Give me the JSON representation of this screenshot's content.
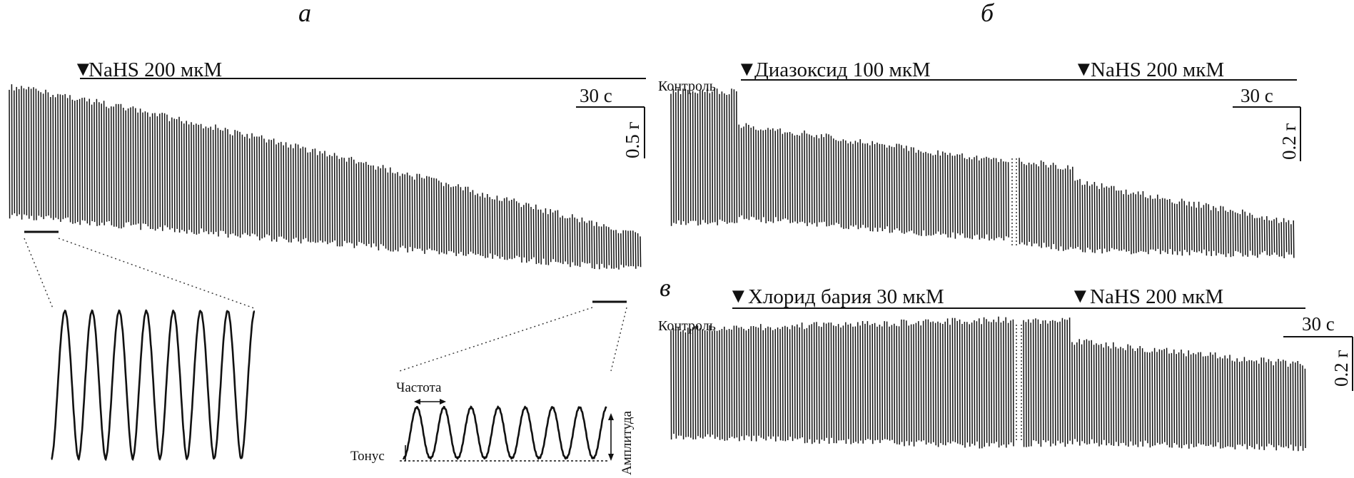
{
  "panels": {
    "a": {
      "letter": "а",
      "drug": "NaHS 200 мкМ",
      "time_scale": "30 с",
      "force_scale": "0.5 г",
      "detail": {
        "frequency_label": "Частота",
        "tone_label": "Тонус",
        "amplitude_label": "Амплитуда"
      }
    },
    "b": {
      "letter": "б",
      "control_label": "Контроль",
      "drug1": "Диазоксид 100 мкМ",
      "drug2": "NaHS 200 мкМ",
      "time_scale": "30 с",
      "force_scale": "0.2 г"
    },
    "c": {
      "letter": "в",
      "control_label": "Контроль",
      "drug1": "Хлорид бария 30 мкМ",
      "drug2": "NaHS 200 мкМ",
      "time_scale": "30 с",
      "force_scale": "0.2 г"
    }
  },
  "marker_glyph": "▼"
}
